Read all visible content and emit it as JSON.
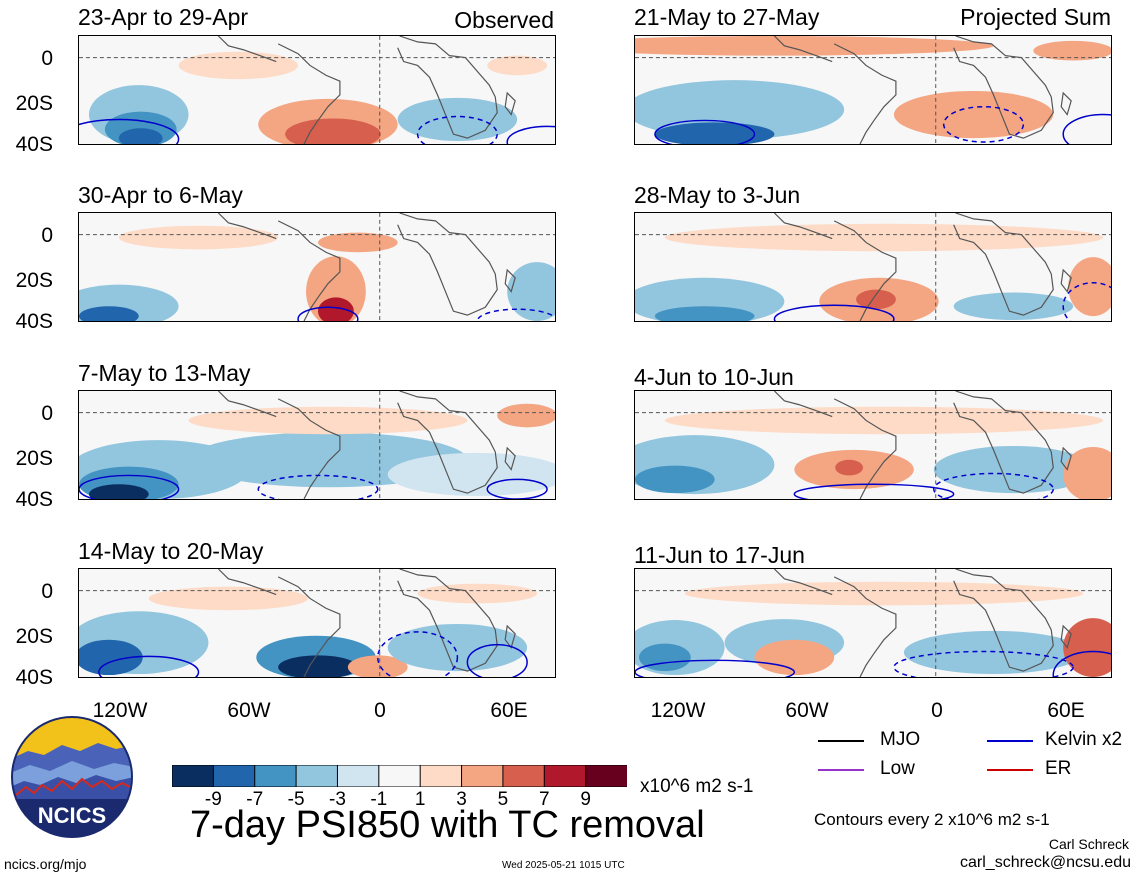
{
  "left_column_label": "Observed",
  "right_column_label": "Projected Sum",
  "panels": [
    {
      "title": "23-Apr to 29-Apr"
    },
    {
      "title": "30-Apr to 6-May"
    },
    {
      "title": "7-May to 13-May"
    },
    {
      "title": "14-May to 20-May"
    },
    {
      "title": "21-May to 27-May"
    },
    {
      "title": "28-May to 3-Jun"
    },
    {
      "title": "4-Jun to 10-Jun"
    },
    {
      "title": "11-Jun to 17-Jun"
    }
  ],
  "y_ticks": [
    "0",
    "20S",
    "40S"
  ],
  "x_ticks": [
    "120W",
    "60W",
    "0",
    "60E"
  ],
  "colorbar": {
    "ticks": [
      "-9",
      "-7",
      "-5",
      "-3",
      "-1",
      "1",
      "3",
      "5",
      "7",
      "9"
    ],
    "units": "x10^6 m2 s-1",
    "colors": [
      "#0b2e61",
      "#2166ac",
      "#4393c3",
      "#92c5de",
      "#d1e5f0",
      "#f7f7f7",
      "#fddbc7",
      "#f4a582",
      "#d6604d",
      "#b2182b",
      "#67001f"
    ]
  },
  "main_title": "7-day PSI850 with TC removal",
  "legend": [
    {
      "label": "MJO",
      "color": "#000000"
    },
    {
      "label": "Kelvin x2",
      "color": "#0000cc"
    },
    {
      "label": "Low",
      "color": "#9933cc"
    },
    {
      "label": "ER",
      "color": "#cc0000"
    }
  ],
  "contour_note": "Contours every 2 x10^6 m2 s-1",
  "author": "Carl Schreck",
  "email": "carl_schreck@ncsu.edu",
  "website": "ncics.org/mjo",
  "timestamp": "Wed 2025-05-21 1015 UTC",
  "logo_text": "NCICS"
}
